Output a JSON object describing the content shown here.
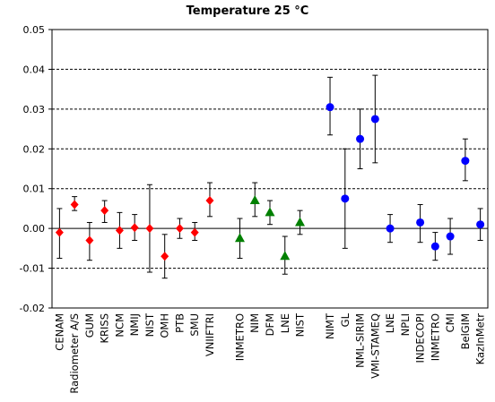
{
  "chart_data": {
    "type": "scatter",
    "title": "Temperature  25 °C",
    "xlabel": "",
    "ylabel": "",
    "ylim": [
      -0.02,
      0.05
    ],
    "yticks": [
      "0.05",
      "0.04",
      "0.03",
      "0.02",
      "0.01",
      "0.00",
      "-0.01",
      "-0.02"
    ],
    "grid": "horizontal dashed",
    "legend": "none",
    "categories": [
      {
        "label": "CENAM",
        "value": -0.001,
        "low": -0.0075,
        "high": 0.005,
        "marker": "diamond",
        "color": "#ff0000"
      },
      {
        "label": "Radiometer A/S",
        "value": 0.006,
        "low": 0.0045,
        "high": 0.008,
        "marker": "diamond",
        "color": "#ff0000"
      },
      {
        "label": "GUM",
        "value": -0.003,
        "low": -0.008,
        "high": 0.0015,
        "marker": "diamond",
        "color": "#ff0000"
      },
      {
        "label": "KRISS",
        "value": 0.0045,
        "low": 0.0015,
        "high": 0.007,
        "marker": "diamond",
        "color": "#ff0000"
      },
      {
        "label": "NCM",
        "value": -0.0005,
        "low": -0.005,
        "high": 0.004,
        "marker": "diamond",
        "color": "#ff0000"
      },
      {
        "label": "NMIJ",
        "value": 0.0002,
        "low": -0.003,
        "high": 0.0035,
        "marker": "diamond",
        "color": "#ff0000"
      },
      {
        "label": "NIST",
        "value": 0.0,
        "low": -0.011,
        "high": 0.011,
        "marker": "diamond",
        "color": "#ff0000"
      },
      {
        "label": "OMH",
        "value": -0.007,
        "low": -0.0125,
        "high": -0.0015,
        "marker": "diamond",
        "color": "#ff0000"
      },
      {
        "label": "PTB",
        "value": 0.0,
        "low": -0.0025,
        "high": 0.0025,
        "marker": "diamond",
        "color": "#ff0000"
      },
      {
        "label": "SMU",
        "value": -0.001,
        "low": -0.003,
        "high": 0.0015,
        "marker": "diamond",
        "color": "#ff0000"
      },
      {
        "label": "VNIIFTRI",
        "value": 0.007,
        "low": 0.003,
        "high": 0.0115,
        "marker": "diamond",
        "color": "#ff0000"
      },
      {
        "label": "",
        "value": null,
        "marker": "none",
        "color": ""
      },
      {
        "label": "INMETRO",
        "value": -0.0025,
        "low": -0.0075,
        "high": 0.0025,
        "marker": "triangle",
        "color": "#008000"
      },
      {
        "label": "NIM",
        "value": 0.007,
        "low": 0.003,
        "high": 0.0115,
        "marker": "triangle",
        "color": "#008000"
      },
      {
        "label": "DFM",
        "value": 0.004,
        "low": 0.001,
        "high": 0.007,
        "marker": "triangle",
        "color": "#008000"
      },
      {
        "label": "LNE",
        "value": -0.007,
        "low": -0.0115,
        "high": -0.002,
        "marker": "triangle",
        "color": "#008000"
      },
      {
        "label": "NIST",
        "value": 0.0015,
        "low": -0.0015,
        "high": 0.0045,
        "marker": "triangle",
        "color": "#008000"
      },
      {
        "label": "",
        "value": null,
        "marker": "none",
        "color": ""
      },
      {
        "label": "NIMT",
        "value": 0.0305,
        "low": 0.0235,
        "high": 0.038,
        "marker": "circle",
        "color": "#0000ff"
      },
      {
        "label": "GL",
        "value": 0.0075,
        "low": -0.005,
        "high": 0.02,
        "marker": "circle",
        "color": "#0000ff"
      },
      {
        "label": "NML-SIRIM",
        "value": 0.0225,
        "low": 0.015,
        "high": 0.03,
        "marker": "circle",
        "color": "#0000ff"
      },
      {
        "label": "VMI-STAMEQ",
        "value": 0.0275,
        "low": 0.0165,
        "high": 0.0385,
        "marker": "circle",
        "color": "#0000ff"
      },
      {
        "label": "LNE",
        "value": 0.0,
        "low": -0.0035,
        "high": 0.0035,
        "marker": "circle",
        "color": "#0000ff"
      },
      {
        "label": "NPLI",
        "value": null,
        "marker": "none",
        "color": "#0000ff"
      },
      {
        "label": "INDECOPI",
        "value": 0.0015,
        "low": -0.0035,
        "high": 0.006,
        "marker": "circle",
        "color": "#0000ff"
      },
      {
        "label": "INMETRO",
        "value": -0.0045,
        "low": -0.008,
        "high": -0.001,
        "marker": "circle",
        "color": "#0000ff"
      },
      {
        "label": "CMI",
        "value": -0.002,
        "low": -0.0065,
        "high": 0.0025,
        "marker": "circle",
        "color": "#0000ff"
      },
      {
        "label": "BelGIM",
        "value": 0.017,
        "low": 0.012,
        "high": 0.0225,
        "marker": "circle",
        "color": "#0000ff"
      },
      {
        "label": "KazInMetr",
        "value": 0.001,
        "low": -0.003,
        "high": 0.005,
        "marker": "circle",
        "color": "#0000ff"
      }
    ]
  }
}
